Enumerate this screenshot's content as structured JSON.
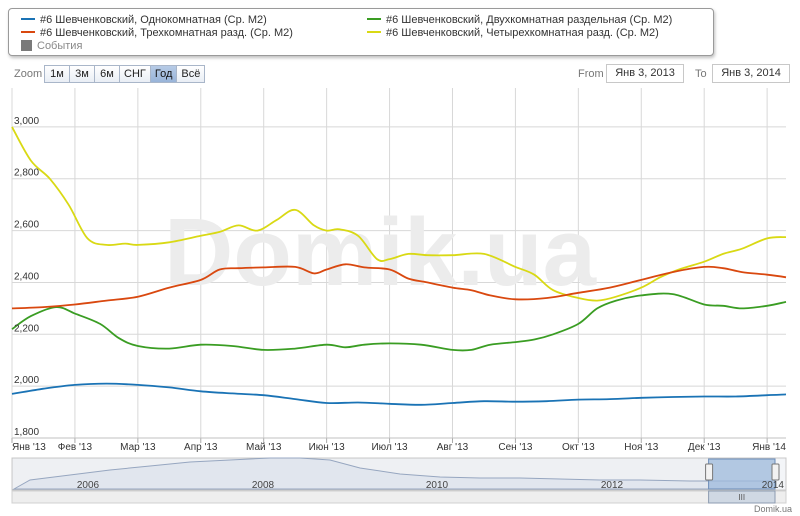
{
  "legend": {
    "items": [
      {
        "label": "#6 Шевченковский, Однокомнатная (Ср. М2)",
        "color": "#1a73b5"
      },
      {
        "label": "#6 Шевченковский, Трехкомнатная разд. (Ср. М2)",
        "color": "#d9480f"
      },
      {
        "label": "#6 Шевченковский, Двухкомнатная раздельная (Ср. М2)",
        "color": "#3a9d23"
      },
      {
        "label": "#6 Шевченковский, Четырехкомнатная разд. (Ср. М2)",
        "color": "#d9d914"
      }
    ],
    "events_label": "События"
  },
  "toolbar": {
    "zoom_label": "Zoom",
    "buttons": [
      "1м",
      "3м",
      "6м",
      "СНГ",
      "Год",
      "Всё"
    ],
    "active_button": "Год",
    "from_label": "From",
    "from_value": "Янв 3, 2013",
    "to_label": "To",
    "to_value": "Янв 3, 2014"
  },
  "watermark": "Domik.ua",
  "credit": "Domik.ua",
  "chart_data": {
    "type": "line",
    "title": "",
    "xlabel": "",
    "ylabel": "",
    "ylim": [
      1800,
      3150
    ],
    "yticks": [
      1800,
      2000,
      2200,
      2400,
      2600,
      2800,
      3000
    ],
    "ytick_labels": [
      "1,800",
      "2,000",
      "2,200",
      "2,400",
      "2,600",
      "2,800",
      "3,000"
    ],
    "x_domain": [
      0,
      12.3
    ],
    "xticks": [
      {
        "x": 0,
        "label": "Янв '13"
      },
      {
        "x": 1,
        "label": "Фев '13"
      },
      {
        "x": 2,
        "label": "Мар '13"
      },
      {
        "x": 3,
        "label": "Апр '13"
      },
      {
        "x": 4,
        "label": "Май '13"
      },
      {
        "x": 5,
        "label": "Июн '13"
      },
      {
        "x": 6,
        "label": "Июл '13"
      },
      {
        "x": 7,
        "label": "Авг '13"
      },
      {
        "x": 8,
        "label": "Сен '13"
      },
      {
        "x": 9,
        "label": "Окт '13"
      },
      {
        "x": 10,
        "label": "Ноя '13"
      },
      {
        "x": 11,
        "label": "Дек '13"
      },
      {
        "x": 12,
        "label": "Янв '14"
      }
    ],
    "grid": true,
    "series": [
      {
        "name": "#6 Шевченковский, Однокомнатная (Ср. М2)",
        "color": "#1a73b5",
        "points": [
          [
            0,
            1970
          ],
          [
            0.5,
            1990
          ],
          [
            1,
            2005
          ],
          [
            1.5,
            2010
          ],
          [
            2,
            2005
          ],
          [
            2.5,
            1995
          ],
          [
            3,
            1980
          ],
          [
            3.5,
            1972
          ],
          [
            4,
            1965
          ],
          [
            4.5,
            1950
          ],
          [
            5,
            1935
          ],
          [
            5.5,
            1937
          ],
          [
            6,
            1932
          ],
          [
            6.5,
            1928
          ],
          [
            7,
            1935
          ],
          [
            7.5,
            1942
          ],
          [
            8,
            1940
          ],
          [
            8.5,
            1942
          ],
          [
            9,
            1948
          ],
          [
            9.5,
            1950
          ],
          [
            10,
            1955
          ],
          [
            10.5,
            1958
          ],
          [
            11,
            1960
          ],
          [
            11.5,
            1960
          ],
          [
            12,
            1965
          ],
          [
            12.3,
            1968
          ]
        ]
      },
      {
        "name": "#6 Шевченковский, Трехкомнатная разд. (Ср. М2)",
        "color": "#d9480f",
        "points": [
          [
            0,
            2300
          ],
          [
            0.5,
            2305
          ],
          [
            1,
            2315
          ],
          [
            1.5,
            2330
          ],
          [
            2,
            2345
          ],
          [
            2.5,
            2380
          ],
          [
            3,
            2410
          ],
          [
            3.3,
            2450
          ],
          [
            3.6,
            2455
          ],
          [
            4,
            2458
          ],
          [
            4.5,
            2460
          ],
          [
            4.8,
            2435
          ],
          [
            5,
            2450
          ],
          [
            5.3,
            2470
          ],
          [
            5.6,
            2458
          ],
          [
            6,
            2450
          ],
          [
            6.3,
            2415
          ],
          [
            6.6,
            2400
          ],
          [
            7,
            2380
          ],
          [
            7.3,
            2370
          ],
          [
            7.6,
            2350
          ],
          [
            8,
            2335
          ],
          [
            8.5,
            2340
          ],
          [
            9,
            2360
          ],
          [
            9.5,
            2380
          ],
          [
            10,
            2410
          ],
          [
            10.5,
            2440
          ],
          [
            11,
            2460
          ],
          [
            11.3,
            2455
          ],
          [
            11.6,
            2440
          ],
          [
            12,
            2430
          ],
          [
            12.3,
            2420
          ]
        ]
      },
      {
        "name": "#6 Шевченковский, Двухкомнатная раздельная (Ср. М2)",
        "color": "#3a9d23",
        "points": [
          [
            0,
            2220
          ],
          [
            0.3,
            2270
          ],
          [
            0.7,
            2305
          ],
          [
            1,
            2280
          ],
          [
            1.4,
            2240
          ],
          [
            1.7,
            2185
          ],
          [
            2,
            2155
          ],
          [
            2.5,
            2145
          ],
          [
            3,
            2160
          ],
          [
            3.5,
            2155
          ],
          [
            4,
            2140
          ],
          [
            4.5,
            2145
          ],
          [
            5,
            2160
          ],
          [
            5.3,
            2150
          ],
          [
            5.6,
            2160
          ],
          [
            6,
            2165
          ],
          [
            6.5,
            2160
          ],
          [
            7,
            2140
          ],
          [
            7.3,
            2140
          ],
          [
            7.6,
            2160
          ],
          [
            8,
            2170
          ],
          [
            8.3,
            2180
          ],
          [
            8.6,
            2200
          ],
          [
            9,
            2240
          ],
          [
            9.3,
            2300
          ],
          [
            9.6,
            2330
          ],
          [
            10,
            2350
          ],
          [
            10.5,
            2355
          ],
          [
            11,
            2315
          ],
          [
            11.3,
            2310
          ],
          [
            11.6,
            2300
          ],
          [
            12,
            2310
          ],
          [
            12.3,
            2325
          ]
        ]
      },
      {
        "name": "#6 Шевченковский, Четырехкомнатная разд. (Ср. М2)",
        "color": "#d9d914",
        "points": [
          [
            0,
            3000
          ],
          [
            0.3,
            2870
          ],
          [
            0.6,
            2800
          ],
          [
            0.9,
            2700
          ],
          [
            1.2,
            2570
          ],
          [
            1.5,
            2545
          ],
          [
            1.8,
            2550
          ],
          [
            2,
            2545
          ],
          [
            2.5,
            2555
          ],
          [
            3,
            2580
          ],
          [
            3.3,
            2595
          ],
          [
            3.6,
            2620
          ],
          [
            3.9,
            2600
          ],
          [
            4.2,
            2640
          ],
          [
            4.5,
            2680
          ],
          [
            4.8,
            2620
          ],
          [
            5,
            2600
          ],
          [
            5.2,
            2605
          ],
          [
            5.5,
            2580
          ],
          [
            5.8,
            2490
          ],
          [
            6,
            2490
          ],
          [
            6.3,
            2510
          ],
          [
            6.6,
            2505
          ],
          [
            7,
            2505
          ],
          [
            7.5,
            2510
          ],
          [
            8,
            2460
          ],
          [
            8.3,
            2430
          ],
          [
            8.6,
            2370
          ],
          [
            9,
            2340
          ],
          [
            9.3,
            2330
          ],
          [
            9.6,
            2345
          ],
          [
            10,
            2380
          ],
          [
            10.3,
            2420
          ],
          [
            10.6,
            2450
          ],
          [
            11,
            2480
          ],
          [
            11.3,
            2510
          ],
          [
            11.6,
            2530
          ],
          [
            12,
            2570
          ],
          [
            12.3,
            2575
          ]
        ]
      }
    ]
  },
  "navigator": {
    "year_labels": [
      "2006",
      "2008",
      "2010",
      "2012",
      "2014"
    ],
    "selection": [
      0.9,
      1.0
    ]
  }
}
